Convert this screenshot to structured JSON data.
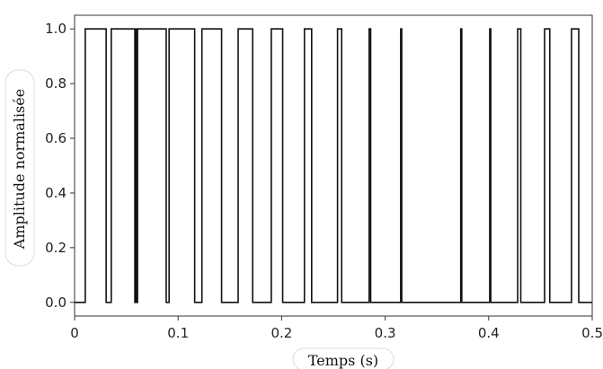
{
  "chart_data": {
    "type": "line",
    "title": "",
    "xlabel": "Temps (s)",
    "ylabel": "Amplitude normalisée",
    "xlim": [
      0,
      0.5
    ],
    "ylim": [
      -0.05,
      1.05
    ],
    "grid": false,
    "line_color": "#111111",
    "xticks": [
      {
        "value": 0,
        "label": "0"
      },
      {
        "value": 0.1,
        "label": "0.1"
      },
      {
        "value": 0.2,
        "label": "0.2"
      },
      {
        "value": 0.3,
        "label": "0.3"
      },
      {
        "value": 0.4,
        "label": "0.4"
      },
      {
        "value": 0.5,
        "label": "0.5"
      }
    ],
    "yticks": [
      {
        "value": 0.0,
        "label": "0.0"
      },
      {
        "value": 0.2,
        "label": "0.2"
      },
      {
        "value": 0.4,
        "label": "0.4"
      },
      {
        "value": 0.6,
        "label": "0.6"
      },
      {
        "value": 0.8,
        "label": "0.8"
      },
      {
        "value": 1.0,
        "label": "1.0"
      }
    ],
    "series": [
      {
        "pulses": [
          [
            0.0103,
            0.0305
          ],
          [
            0.0354,
            0.0582
          ],
          [
            0.0588,
            0.0595
          ],
          [
            0.0608,
            0.0885
          ],
          [
            0.0913,
            0.116
          ],
          [
            0.123,
            0.142
          ],
          [
            0.158,
            0.172
          ],
          [
            0.19,
            0.201
          ],
          [
            0.222,
            0.229
          ],
          [
            0.254,
            0.258
          ],
          [
            0.2845,
            0.286
          ],
          [
            0.315,
            0.316
          ],
          [
            0.373,
            0.374
          ],
          [
            0.401,
            0.402
          ],
          [
            0.428,
            0.431
          ],
          [
            0.454,
            0.459
          ],
          [
            0.48,
            0.487
          ]
        ]
      }
    ]
  }
}
